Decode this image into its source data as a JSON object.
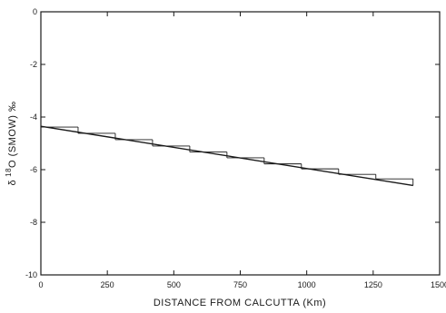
{
  "chart_data": {
    "type": "line",
    "xlabel": "DISTANCE FROM CALCUTTA (Km)",
    "ylabel_parts": {
      "delta": "δ",
      "superscript": "18",
      "rest": "O (SMOW) ‰"
    },
    "xlim": [
      0,
      1500
    ],
    "ylim": [
      -10,
      0
    ],
    "x_ticks": [
      0,
      250,
      500,
      750,
      1000,
      1250,
      1500
    ],
    "x_tick_labels": [
      "0",
      "250",
      "500",
      "750",
      "1000",
      "1250",
      "1500"
    ],
    "y_ticks": [
      0,
      -2,
      -4,
      -6,
      -8,
      -10
    ],
    "y_tick_labels": [
      "0",
      "-2",
      "-4",
      "-6",
      "-8",
      "-10"
    ],
    "grid": false,
    "series": [
      {
        "style": "step",
        "points": [
          {
            "x0": 0,
            "x1": 140,
            "y": -4.38
          },
          {
            "x0": 140,
            "x1": 280,
            "y": -4.62
          },
          {
            "x0": 280,
            "x1": 420,
            "y": -4.86
          },
          {
            "x0": 420,
            "x1": 560,
            "y": -5.1
          },
          {
            "x0": 560,
            "x1": 700,
            "y": -5.33
          },
          {
            "x0": 700,
            "x1": 840,
            "y": -5.55
          },
          {
            "x0": 840,
            "x1": 980,
            "y": -5.78
          },
          {
            "x0": 980,
            "x1": 1120,
            "y": -5.97
          },
          {
            "x0": 1120,
            "x1": 1260,
            "y": -6.18
          },
          {
            "x0": 1260,
            "x1": 1400,
            "y": -6.35
          }
        ]
      },
      {
        "style": "linear",
        "x": [
          0,
          1400
        ],
        "y": [
          -4.35,
          -6.6
        ]
      }
    ]
  }
}
